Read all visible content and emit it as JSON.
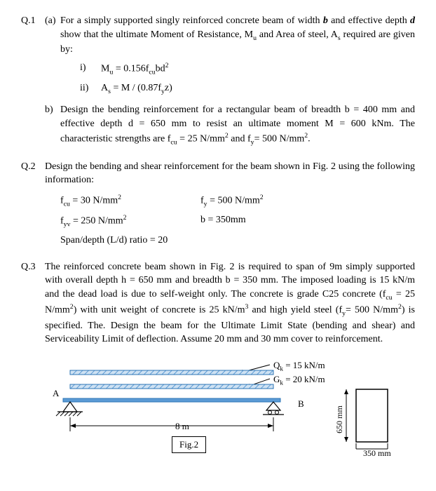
{
  "q1": {
    "num": "Q.1",
    "part_a": "(a)",
    "a_text": "For a simply supported singly reinforced concrete beam of width <span class='bolditalic'>b</span> and effective depth <span class='bolditalic'>d</span> show that the ultimate Moment of Resistance, M<sub>u</sub> and Area of steel, A<sub>s</sub> required are given by:",
    "eq1_num": "i)",
    "eq1": "M<sub>u</sub> = 0.156f<sub>cu</sub>bd<sup>2</sup>",
    "eq2_num": "ii)",
    "eq2": "A<sub>s</sub> = M / (0.87f<sub>y</sub>z)",
    "part_b": "b)",
    "b_text": "Design the bending reinforcement for a rectangular beam of breadth b = 400 mm and effective depth d = 650 mm to resist an ultimate moment M = 600 kNm. The characteristic strengths are f<sub>cu</sub> = 25 N/mm<sup>2</sup> and f<sub>y</sub>= 500 N/mm<sup>2</sup>."
  },
  "q2": {
    "num": "Q.2",
    "text": "Design the bending and shear reinforcement for the beam shown in Fig. 2 using the following information:",
    "row1_c1": "f<sub>cu</sub> = 30 N/mm<sup>2</sup>",
    "row1_c2": "f<sub>y</sub> = 500 N/mm<sup>2</sup>",
    "row2_c1": "f<sub>yv</sub> = 250 N/mm<sup>2</sup>",
    "row2_c2": "b = 350mm",
    "row3": "Span/depth (L/d) ratio = 20"
  },
  "q3": {
    "num": "Q.3",
    "text": "The reinforced concrete beam shown in Fig. 2 is required to span of 9m simply supported with overall depth h = 650 mm and breadth b = 350 mm.  The imposed loading is 15 kN/m and the dead load is due to self-weight only. The concrete is grade C25 concrete (f<sub>cu</sub> = 25 N/mm<sup>2</sup>) with unit weight of concrete is 25 kN/m<sup>3</sup> and high yield steel (f<sub>y</sub>= 500 N/mm<sup>2</sup>) is specified. The. Design the beam for the Ultimate Limit State (bending and shear) and Serviceability Limit of deflection. Assume 20 mm and 30 mm cover to reinforcement."
  },
  "figure": {
    "qk_label": "Q<sub>k</sub> = 15 kN/m",
    "gk_label": "G<sub>k</sub> = 20 kN/m",
    "a_label": "A",
    "b_label": "B",
    "span": "8 m",
    "fig_caption": "Fig.2",
    "depth": "650 mm",
    "width": "350 mm",
    "beam_color": "#5b9bd5",
    "beam_border": "#2e75b6",
    "hatch_pattern": "repeating-linear-gradient(45deg,#9dc3e6,#9dc3e6 2px,#fff 2px,#fff 5px)"
  }
}
